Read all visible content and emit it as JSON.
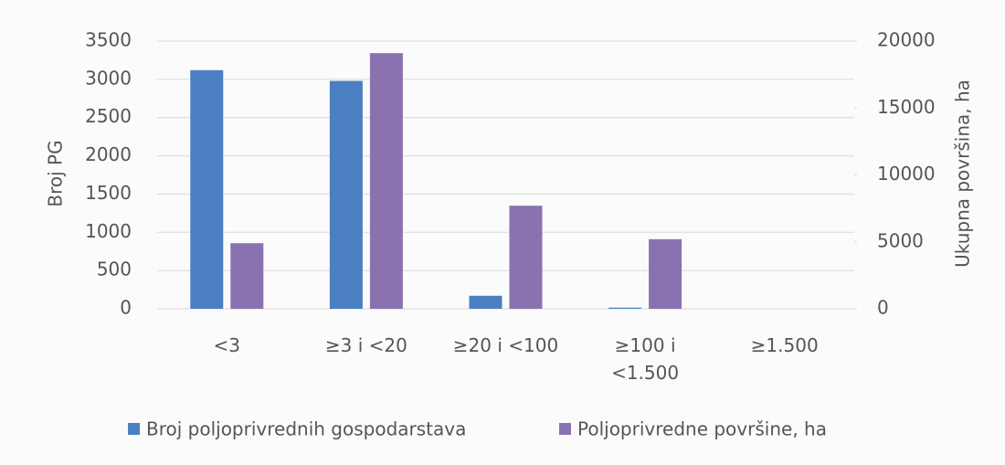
{
  "chart_data": {
    "type": "bar",
    "categories": [
      "<3",
      "≥3 i <20",
      "≥20 i <100",
      "≥100 i <1.500",
      "≥1.500"
    ],
    "series": [
      {
        "name": "Broj poljoprivrednih gospodarstava",
        "color": "#4a7fc1",
        "values": [
          3120,
          2980,
          170,
          15,
          0
        ]
      },
      {
        "name": "Poljoprivredne površine, ha",
        "color": "#8a72b0",
        "axis": "y2",
        "values": [
          4900,
          19100,
          7700,
          5200,
          0
        ]
      }
    ],
    "y_label": "Broj PG",
    "y2_label": "Ukupna površina, ha",
    "ylim": [
      0,
      3500
    ],
    "yticks": [
      0,
      500,
      1000,
      1500,
      2000,
      2500,
      3000,
      3500
    ],
    "y2lim": [
      0,
      20000
    ],
    "y2ticks": [
      0,
      5000,
      10000,
      15000,
      20000
    ],
    "grid": true,
    "legend": "bottom"
  }
}
